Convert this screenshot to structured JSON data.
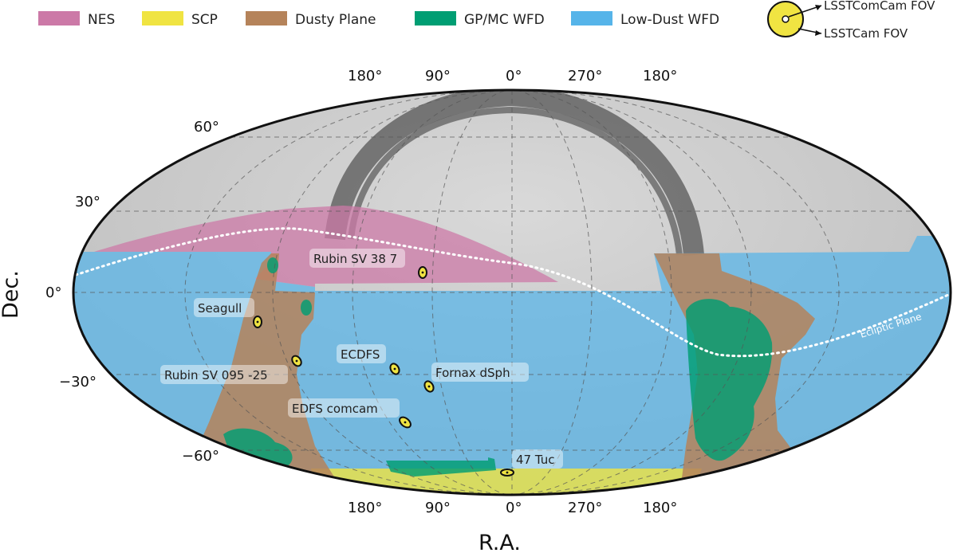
{
  "legend": {
    "items": [
      {
        "label": "NES",
        "color": "#cc79a7"
      },
      {
        "label": "SCP",
        "color": "#f0e442"
      },
      {
        "label": "Dusty Plane",
        "color": "#b5835a"
      },
      {
        "label": "GP/MC WFD",
        "color": "#009e73"
      },
      {
        "label": "Low-Dust WFD",
        "color": "#56b4e9"
      }
    ],
    "fov_comcam_label": "LSSTComCam FOV",
    "fov_lsstcam_label": "LSSTCam FOV"
  },
  "axes": {
    "ra_ticks_top": [
      "180°",
      "90°",
      "0°",
      "270°",
      "180°"
    ],
    "ra_ticks_bottom": [
      "180°",
      "90°",
      "0°",
      "270°",
      "180°"
    ],
    "dec_ticks": [
      "60°",
      "30°",
      "0°",
      "−30°",
      "−60°"
    ],
    "xlabel": "R.A.",
    "ylabel": "Dec."
  },
  "ecliptic_label": "Ecliptic Plane",
  "fields": [
    {
      "name": "Rubin SV 38 7"
    },
    {
      "name": "Seagull"
    },
    {
      "name": "Rubin SV 095 -25"
    },
    {
      "name": "ECDFS"
    },
    {
      "name": "Fornax dSph"
    },
    {
      "name": "EDFS comcam"
    },
    {
      "name": "47 Tuc"
    }
  ]
}
